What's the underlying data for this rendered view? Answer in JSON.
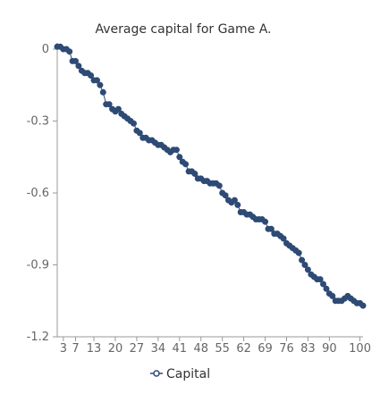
{
  "chart_data": {
    "type": "line",
    "title": "Average capital for Game A.",
    "xlabel": "",
    "ylabel": "",
    "x_ticks": [
      "3",
      "7",
      "13",
      "20",
      "27",
      "34",
      "41",
      "48",
      "55",
      "62",
      "69",
      "76",
      "83",
      "90",
      "100"
    ],
    "y_ticks": [
      "0",
      "-0.3",
      "-0.6",
      "-0.9",
      "-1.2"
    ],
    "ylim": [
      -1.2,
      0
    ],
    "xlim": [
      1,
      101
    ],
    "grid": false,
    "legend": "bottom",
    "series": [
      {
        "name": "Capital",
        "color": "#2e4a75",
        "x": [
          1,
          2,
          3,
          4,
          5,
          6,
          7,
          8,
          9,
          10,
          11,
          12,
          13,
          14,
          15,
          16,
          17,
          18,
          19,
          20,
          21,
          22,
          23,
          24,
          25,
          26,
          27,
          28,
          29,
          30,
          31,
          32,
          33,
          34,
          35,
          36,
          37,
          38,
          39,
          40,
          41,
          42,
          43,
          44,
          45,
          46,
          47,
          48,
          49,
          50,
          51,
          52,
          53,
          54,
          55,
          56,
          57,
          58,
          59,
          60,
          61,
          62,
          63,
          64,
          65,
          66,
          67,
          68,
          69,
          70,
          71,
          72,
          73,
          74,
          75,
          76,
          77,
          78,
          79,
          80,
          81,
          82,
          83,
          84,
          85,
          86,
          87,
          88,
          89,
          90,
          91,
          92,
          93,
          94,
          95,
          96,
          97,
          98,
          99,
          100,
          101
        ],
        "values": [
          0.01,
          0.01,
          0.0,
          0.0,
          -0.01,
          -0.05,
          -0.05,
          -0.07,
          -0.09,
          -0.1,
          -0.1,
          -0.11,
          -0.13,
          -0.13,
          -0.15,
          -0.18,
          -0.23,
          -0.23,
          -0.25,
          -0.26,
          -0.25,
          -0.27,
          -0.28,
          -0.29,
          -0.3,
          -0.31,
          -0.34,
          -0.35,
          -0.37,
          -0.37,
          -0.38,
          -0.38,
          -0.39,
          -0.4,
          -0.4,
          -0.41,
          -0.42,
          -0.43,
          -0.42,
          -0.42,
          -0.45,
          -0.47,
          -0.48,
          -0.51,
          -0.51,
          -0.52,
          -0.54,
          -0.54,
          -0.55,
          -0.55,
          -0.56,
          -0.56,
          -0.56,
          -0.57,
          -0.6,
          -0.61,
          -0.63,
          -0.64,
          -0.63,
          -0.65,
          -0.68,
          -0.68,
          -0.69,
          -0.69,
          -0.7,
          -0.71,
          -0.71,
          -0.71,
          -0.72,
          -0.75,
          -0.75,
          -0.77,
          -0.77,
          -0.78,
          -0.79,
          -0.81,
          -0.82,
          -0.83,
          -0.84,
          -0.85,
          -0.88,
          -0.9,
          -0.92,
          -0.94,
          -0.95,
          -0.96,
          -0.96,
          -0.98,
          -1.0,
          -1.02,
          -1.03,
          -1.05,
          -1.05,
          -1.05,
          -1.04,
          -1.03,
          -1.04,
          -1.05,
          -1.06,
          -1.06,
          -1.07
        ]
      }
    ]
  }
}
